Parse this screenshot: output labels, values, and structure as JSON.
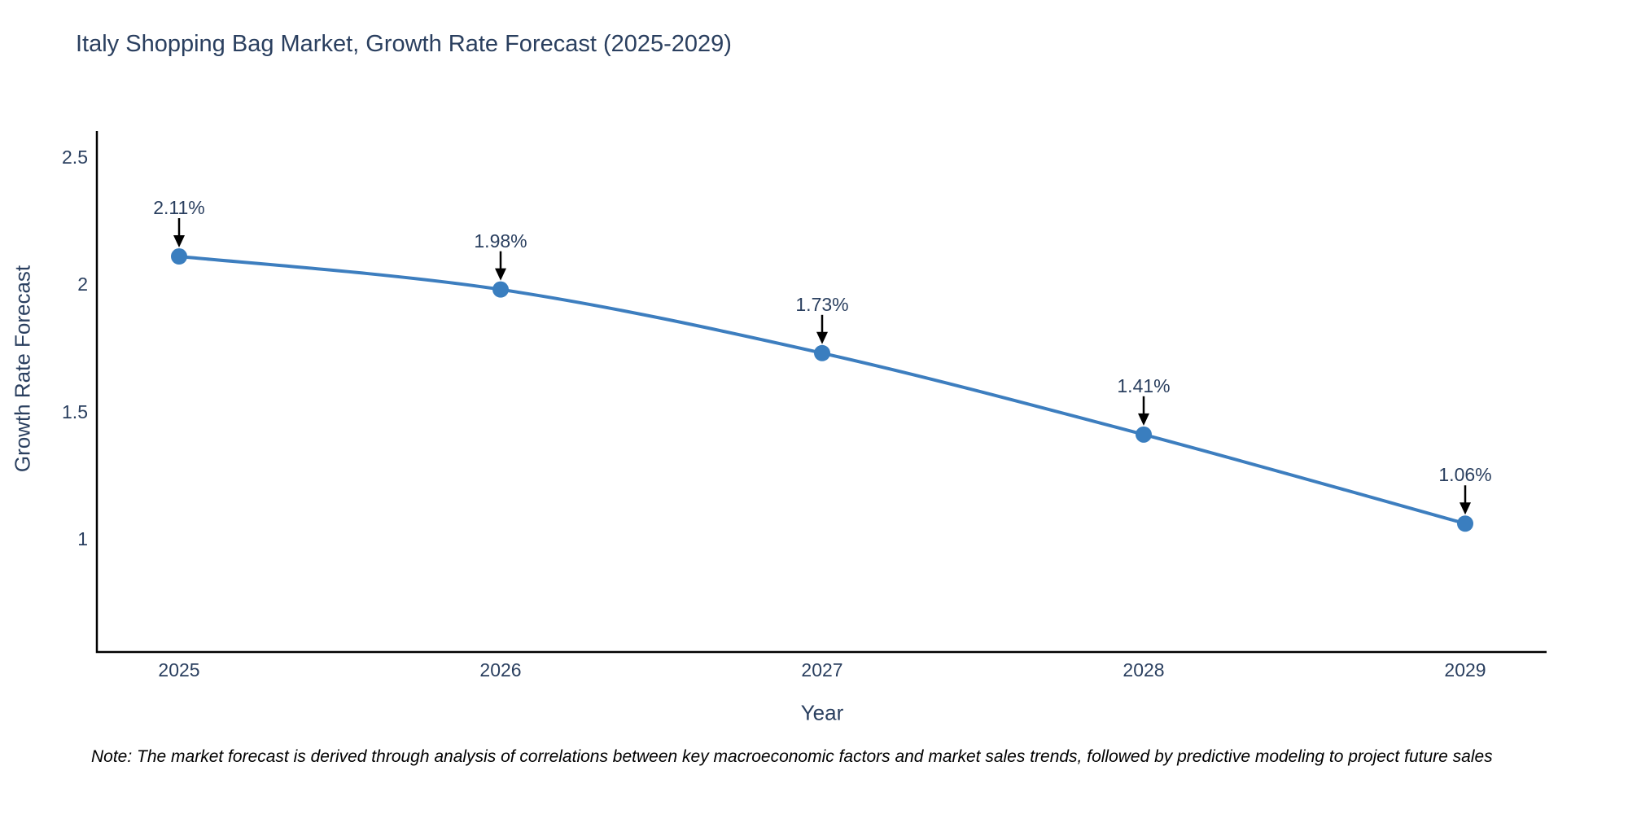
{
  "title": "Italy Shopping Bag Market, Growth Rate Forecast (2025-2029)",
  "note": "Note: The market forecast is derived through analysis of correlations between key macroeconomic factors and market sales trends, followed by predictive modeling to project future sales",
  "chart_data": {
    "type": "line",
    "title": "Italy Shopping Bag Market, Growth Rate Forecast (2025-2029)",
    "xlabel": "Year",
    "ylabel": "Growth Rate Forecast",
    "x": [
      2025,
      2026,
      2027,
      2028,
      2029
    ],
    "series": [
      {
        "name": "Growth Rate Forecast",
        "values": [
          2.11,
          1.98,
          1.73,
          1.41,
          1.06
        ],
        "point_labels": [
          "2.11%",
          "1.98%",
          "1.73%",
          "1.41%",
          "1.06%"
        ]
      }
    ],
    "yticks": [
      2.5,
      2,
      1.5,
      1
    ],
    "ylim": [
      0.56,
      2.6
    ],
    "xlim": [
      2024.74,
      2029.25
    ],
    "grid": false,
    "legend_position": "none",
    "line_shape": "spline",
    "colors": {
      "line": "#3d7ebf",
      "marker": "#3a7ebf",
      "arrow": "#000000",
      "axis": "#000000",
      "text": "#2a3f5f",
      "note_text": "#000000"
    }
  }
}
